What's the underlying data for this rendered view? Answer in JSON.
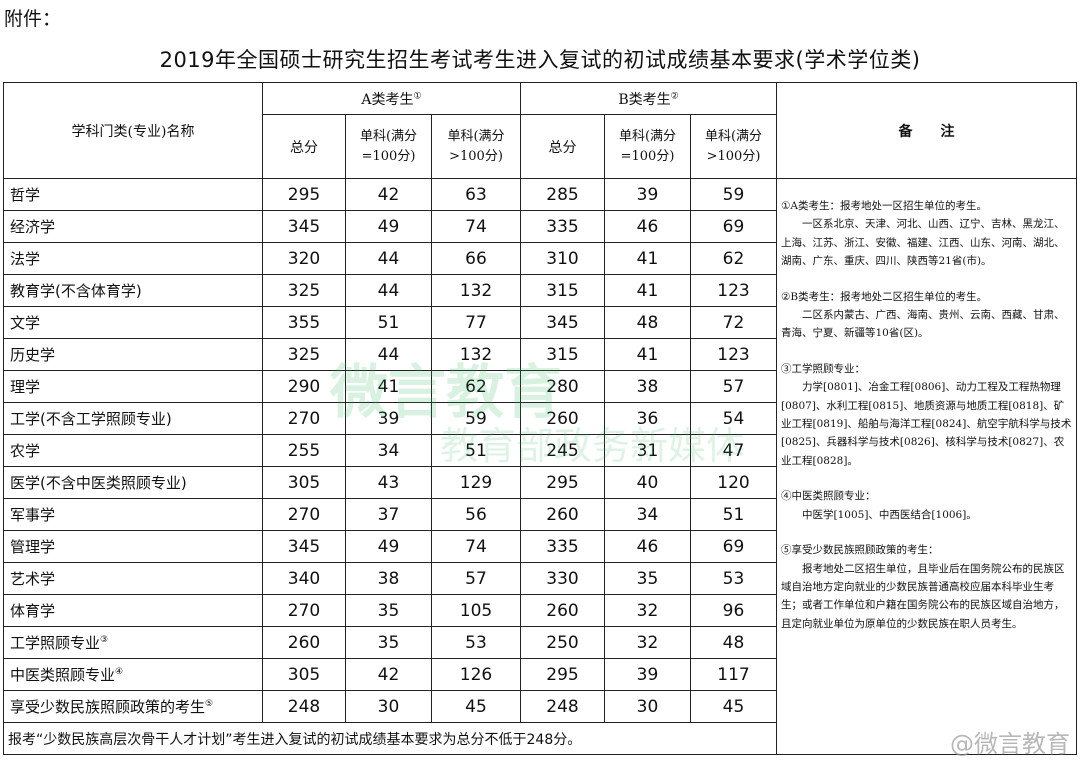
{
  "attachment_label": "附件：",
  "title": "2019年全国硕士研究生招生考试考生进入复试的初试成绩基本要求(学术学位类)",
  "headers": {
    "subject": "学科门类(专业)名称",
    "group_a": "A类考生",
    "group_a_mark": "①",
    "group_b": "B类考生",
    "group_b_mark": "②",
    "total": "总分",
    "single100": "单科(满分=100分)",
    "single_gt100": "单科(满分>100分)",
    "remarks": "备　　注"
  },
  "rows": [
    {
      "name": "哲学",
      "mark": "",
      "a": [
        "295",
        "42",
        "63"
      ],
      "b": [
        "285",
        "39",
        "59"
      ]
    },
    {
      "name": "经济学",
      "mark": "",
      "a": [
        "345",
        "49",
        "74"
      ],
      "b": [
        "335",
        "46",
        "69"
      ]
    },
    {
      "name": "法学",
      "mark": "",
      "a": [
        "320",
        "44",
        "66"
      ],
      "b": [
        "310",
        "41",
        "62"
      ]
    },
    {
      "name": "教育学(不含体育学)",
      "mark": "",
      "a": [
        "325",
        "44",
        "132"
      ],
      "b": [
        "315",
        "41",
        "123"
      ]
    },
    {
      "name": "文学",
      "mark": "",
      "a": [
        "355",
        "51",
        "77"
      ],
      "b": [
        "345",
        "48",
        "72"
      ]
    },
    {
      "name": "历史学",
      "mark": "",
      "a": [
        "325",
        "44",
        "132"
      ],
      "b": [
        "315",
        "41",
        "123"
      ]
    },
    {
      "name": "理学",
      "mark": "",
      "a": [
        "290",
        "41",
        "62"
      ],
      "b": [
        "280",
        "38",
        "57"
      ]
    },
    {
      "name": "工学(不含工学照顾专业)",
      "mark": "",
      "a": [
        "270",
        "39",
        "59"
      ],
      "b": [
        "260",
        "36",
        "54"
      ]
    },
    {
      "name": "农学",
      "mark": "",
      "a": [
        "255",
        "34",
        "51"
      ],
      "b": [
        "245",
        "31",
        "47"
      ]
    },
    {
      "name": "医学(不含中医类照顾专业)",
      "mark": "",
      "a": [
        "305",
        "43",
        "129"
      ],
      "b": [
        "295",
        "40",
        "120"
      ]
    },
    {
      "name": "军事学",
      "mark": "",
      "a": [
        "270",
        "37",
        "56"
      ],
      "b": [
        "260",
        "34",
        "51"
      ]
    },
    {
      "name": "管理学",
      "mark": "",
      "a": [
        "345",
        "49",
        "74"
      ],
      "b": [
        "335",
        "46",
        "69"
      ]
    },
    {
      "name": "艺术学",
      "mark": "",
      "a": [
        "340",
        "38",
        "57"
      ],
      "b": [
        "330",
        "35",
        "53"
      ]
    },
    {
      "name": "体育学",
      "mark": "",
      "a": [
        "270",
        "35",
        "105"
      ],
      "b": [
        "260",
        "32",
        "96"
      ]
    },
    {
      "name": "工学照顾专业",
      "mark": "③",
      "a": [
        "260",
        "35",
        "53"
      ],
      "b": [
        "250",
        "32",
        "48"
      ]
    },
    {
      "name": "中医类照顾专业",
      "mark": "④",
      "a": [
        "305",
        "42",
        "126"
      ],
      "b": [
        "295",
        "39",
        "117"
      ]
    },
    {
      "name": "享受少数民族照顾政策的考生",
      "mark": "⑤",
      "a": [
        "248",
        "30",
        "45"
      ],
      "b": [
        "248",
        "30",
        "45"
      ]
    }
  ],
  "footer": "报考“少数民族高层次骨干人才计划”考生进入复试的初试成绩基本要求为总分不低于248分。",
  "notes": [
    {
      "head": "①A类考生：报考地处一区招生单位的考生。",
      "body": "一区系北京、天津、河北、山西、辽宁、吉林、黑龙江、上海、江苏、浙江、安徽、福建、江西、山东、河南、湖北、湖南、广东、重庆、四川、陕西等21省(市)。"
    },
    {
      "head": "②B类考生：报考地处二区招生单位的考生。",
      "body": "二区系内蒙古、广西、海南、贵州、云南、西藏、甘肃、青海、宁夏、新疆等10省(区)。"
    },
    {
      "head": "③工学照顾专业：",
      "body": "力学[0801]、冶金工程[0806]、动力工程及工程热物理[0807]、水利工程[0815]、地质资源与地质工程[0818]、矿业工程[0819]、船舶与海洋工程[0824]、航空宇航科学与技术[0825]、兵器科学与技术[0826]、核科学与技术[0827]、农业工程[0828]。"
    },
    {
      "head": "④中医类照顾专业：",
      "body": "中医学[1005]、中西医结合[1006]。"
    },
    {
      "head": "⑤享受少数民族照顾政策的考生：",
      "body": "报考地处二区招生单位，且毕业后在国务院公布的民族区域自治地方定向就业的少数民族普通高校应届本科毕业生考生；或者工作单位和户籍在国务院公布的民族区域自治地方，且定向就业单位为原单位的少数民族在职人员考生。"
    }
  ],
  "watermark": {
    "line1": "微言教育",
    "line2": "教育部政务新媒体",
    "weibo": "@微言教育",
    "color": "#2bb35a"
  }
}
